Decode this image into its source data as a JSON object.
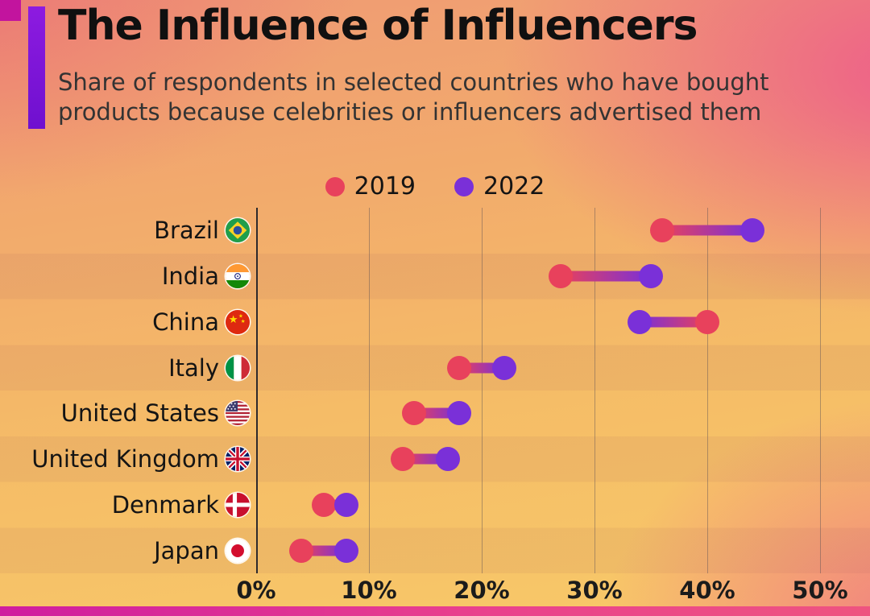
{
  "title": "The Influence of Influencers",
  "subtitle": "Share of respondents in selected countries who have bought products because celebrities or influencers advertised them",
  "colors": {
    "accent_bar": "#7d18d6",
    "corner": "#c2149e",
    "footer": "#d6219c"
  },
  "chart_data": {
    "type": "dumbbell",
    "title": "The Influence of Influencers",
    "categories": [
      "Brazil",
      "India",
      "China",
      "Italy",
      "United States",
      "United Kingdom",
      "Denmark",
      "Japan"
    ],
    "flags": [
      "brazil",
      "india",
      "china",
      "italy",
      "us",
      "uk",
      "denmark",
      "japan"
    ],
    "series": [
      {
        "name": "2019",
        "color": "#e8415c",
        "values": [
          36,
          27,
          40,
          18,
          14,
          13,
          6,
          4
        ]
      },
      {
        "name": "2022",
        "color": "#7a30d8",
        "values": [
          44,
          35,
          34,
          22,
          18,
          17,
          8,
          8
        ]
      }
    ],
    "xlabel": "",
    "ylabel": "",
    "xlim": [
      0,
      50
    ],
    "x_ticks": [
      0,
      10,
      20,
      30,
      40,
      50
    ],
    "x_tick_labels": [
      "0%",
      "10%",
      "20%",
      "30%",
      "40%",
      "50%"
    ],
    "grid": true,
    "legend_position": "top"
  }
}
